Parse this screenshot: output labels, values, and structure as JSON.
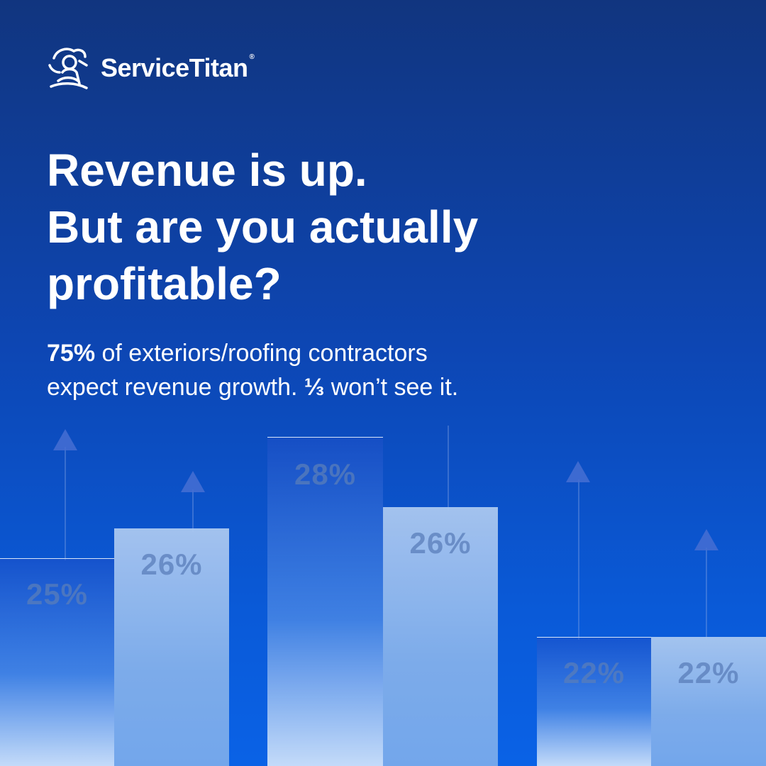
{
  "brand": {
    "name": "ServiceTitan",
    "reg_mark": "®"
  },
  "headline": {
    "line1": "Revenue is up.",
    "line2": "But are you actually",
    "line3": "profitable?"
  },
  "subheadline": {
    "stat": "75%",
    "text1": " of exteriors/roofing contractors",
    "text2": "expect revenue growth. ",
    "fraction": "⅓",
    "text3": " won’t see it."
  },
  "bars": [
    {
      "label": "25%",
      "value": 25
    },
    {
      "label": "26%",
      "value": 26
    },
    {
      "label": "28%",
      "value": 28
    },
    {
      "label": "26%",
      "value": 26
    },
    {
      "label": "22%",
      "value": 22
    },
    {
      "label": "22%",
      "value": 22
    }
  ],
  "colors": {
    "background_top": "#11357f",
    "background_bottom": "#0a62e6",
    "text": "#ffffff"
  },
  "icons": {
    "logo": "titan-figure-icon",
    "arrows": "up-arrow-icon"
  }
}
